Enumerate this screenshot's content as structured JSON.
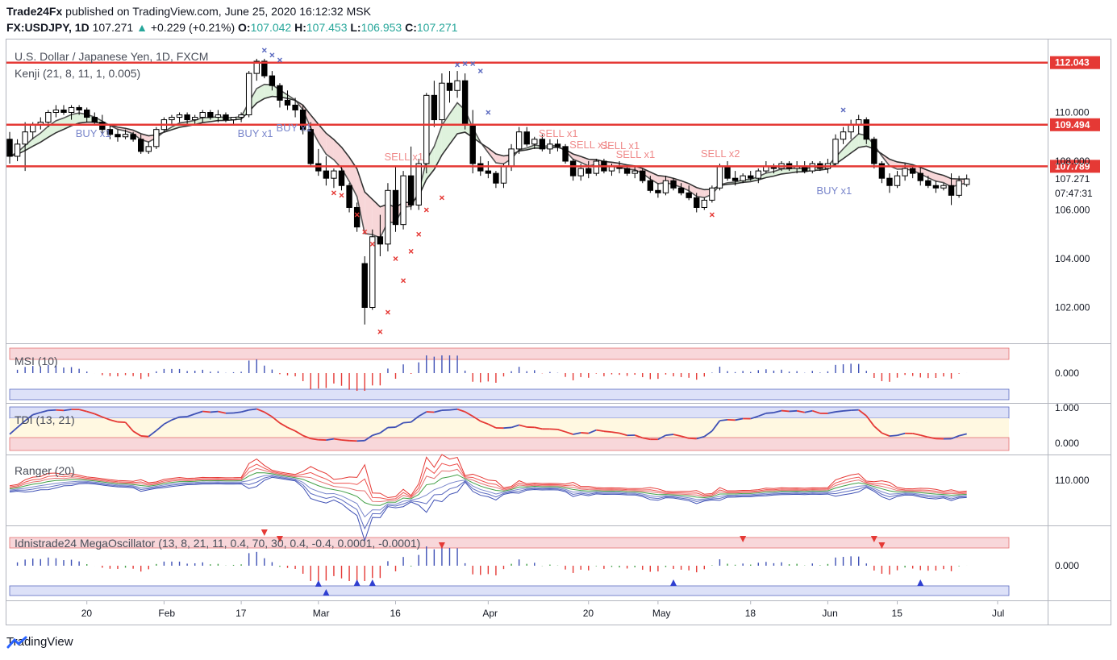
{
  "header": {
    "publisher": "Trade24Fx",
    "published_text": "published on TradingView.com, June 25, 2020 16:12:32 MSK",
    "symbol": "FX:USDJPY, 1D",
    "last": "107.271",
    "change_arrow": "▲",
    "change": "+0.229 (+0.21%)",
    "o_label": "O:",
    "o_value": "107.042",
    "h_label": "H:",
    "h_value": "107.453",
    "l_label": "L:",
    "l_value": "106.953",
    "c_label": "C:",
    "c_value": "107.271"
  },
  "main_pane": {
    "title": "U.S. Dollar / Japanese Yen, 1D, FXCM",
    "indicator": "Kenji (21, 8, 11, 1, 0.005)",
    "levels": [
      {
        "value": 112.043,
        "label": "112.043"
      },
      {
        "value": 109.494,
        "label": "109.494"
      },
      {
        "value": 107.789,
        "label": "107.789"
      }
    ],
    "price_ticks": [
      {
        "value": 110,
        "label": "110.000"
      },
      {
        "value": 108,
        "label": "108.000"
      },
      {
        "value": 106,
        "label": "106.000"
      },
      {
        "value": 104,
        "label": "104.000"
      },
      {
        "value": 102,
        "label": "102.000"
      }
    ],
    "last_price_label": "107.271",
    "countdown": "07:47:31",
    "signals": [
      {
        "text": "BUY x1",
        "type": "buy",
        "bar": 10
      },
      {
        "text": "BUY x1",
        "type": "buy",
        "bar": 31
      },
      {
        "text": "BUY x1",
        "type": "buy",
        "bar": 36
      },
      {
        "text": "SELL x1",
        "type": "sell",
        "bar": 50
      },
      {
        "text": "SELL x1",
        "type": "sell",
        "bar": 70
      },
      {
        "text": "SELL x1",
        "type": "sell",
        "bar": 74
      },
      {
        "text": "SELL x1",
        "type": "sell",
        "bar": 78
      },
      {
        "text": "SELL x1",
        "type": "sell",
        "bar": 80
      },
      {
        "text": "SELL x2",
        "type": "sell",
        "bar": 91
      },
      {
        "text": "BUY x1",
        "type": "buy",
        "bar": 106
      }
    ]
  },
  "msi_pane": {
    "title": "MSI (10)",
    "tick_label": "0.000"
  },
  "tdi_pane": {
    "title": "TDI (13, 21)",
    "tick_labels": [
      "1.000",
      "0.000"
    ]
  },
  "ranger_pane": {
    "title": "Ranger (20)",
    "tick_label": "110.000"
  },
  "mega_pane": {
    "title": "Idnistrade24 MegaOscillator (13, 8, 21, 11, 0.4, 70, 30, 0.4, -0.4, 0.0001, -0.0001)",
    "tick_label": "0.000"
  },
  "time_axis": [
    {
      "label": "20",
      "bar": 10
    },
    {
      "label": "Feb",
      "bar": 20
    },
    {
      "label": "17",
      "bar": 30
    },
    {
      "label": "Mar",
      "bar": 40
    },
    {
      "label": "16",
      "bar": 50
    },
    {
      "label": "Apr",
      "bar": 62
    },
    {
      "label": "20",
      "bar": 75
    },
    {
      "label": "May",
      "bar": 84
    },
    {
      "label": "18",
      "bar": 96
    },
    {
      "label": "Jun",
      "bar": 106
    },
    {
      "label": "15",
      "bar": 115
    },
    {
      "label": "Jul",
      "bar": 128
    }
  ],
  "chart_data": {
    "type": "candlestick",
    "symbol": "FX:USDJPY",
    "timeframe": "1D",
    "ylim": [
      100.8,
      112.6
    ],
    "ohlc": [
      [
        108.9,
        109.2,
        107.9,
        108.2
      ],
      [
        108.2,
        108.9,
        108.0,
        108.7
      ],
      [
        108.7,
        109.6,
        107.6,
        109.2
      ],
      [
        109.2,
        109.6,
        108.9,
        109.5
      ],
      [
        109.5,
        109.8,
        109.3,
        109.6
      ],
      [
        109.6,
        110.1,
        109.4,
        110.0
      ],
      [
        110.0,
        110.3,
        109.8,
        110.1
      ],
      [
        110.1,
        110.3,
        109.9,
        110.0
      ],
      [
        110.0,
        110.3,
        109.7,
        110.2
      ],
      [
        110.2,
        110.3,
        109.9,
        110.1
      ],
      [
        110.1,
        110.2,
        109.6,
        109.8
      ],
      [
        109.8,
        110.0,
        109.5,
        109.6
      ],
      [
        109.6,
        109.9,
        109.1,
        109.3
      ],
      [
        109.3,
        109.5,
        108.9,
        109.1
      ],
      [
        109.1,
        109.3,
        108.8,
        109.0
      ],
      [
        109.0,
        109.3,
        108.9,
        109.1
      ],
      [
        109.1,
        109.2,
        108.8,
        108.9
      ],
      [
        108.9,
        109.1,
        108.3,
        108.4
      ],
      [
        108.4,
        108.8,
        108.3,
        108.6
      ],
      [
        108.6,
        109.4,
        108.5,
        109.3
      ],
      [
        109.3,
        109.8,
        109.2,
        109.7
      ],
      [
        109.7,
        109.9,
        109.5,
        109.8
      ],
      [
        109.8,
        110.0,
        109.6,
        109.9
      ],
      [
        109.9,
        110.0,
        109.5,
        109.7
      ],
      [
        109.7,
        109.9,
        109.5,
        109.8
      ],
      [
        109.8,
        110.1,
        109.6,
        110.0
      ],
      [
        110.0,
        110.1,
        109.7,
        109.8
      ],
      [
        109.8,
        110.1,
        109.6,
        109.9
      ],
      [
        109.9,
        110.0,
        109.6,
        109.7
      ],
      [
        109.7,
        109.8,
        109.5,
        109.8
      ],
      [
        109.8,
        110.0,
        109.6,
        109.9
      ],
      [
        109.9,
        111.7,
        109.8,
        111.6
      ],
      [
        111.6,
        112.2,
        111.3,
        112.1
      ],
      [
        112.1,
        112.2,
        111.4,
        111.5
      ],
      [
        111.5,
        111.7,
        110.9,
        111.1
      ],
      [
        111.1,
        111.2,
        110.2,
        110.5
      ],
      [
        110.5,
        110.9,
        110.1,
        110.3
      ],
      [
        110.3,
        110.6,
        109.8,
        110.1
      ],
      [
        110.1,
        110.3,
        109.1,
        109.3
      ],
      [
        109.3,
        109.6,
        107.8,
        107.9
      ],
      [
        107.9,
        108.5,
        107.4,
        107.6
      ],
      [
        107.6,
        108.2,
        107.0,
        107.3
      ],
      [
        107.3,
        107.7,
        106.9,
        107.6
      ],
      [
        107.6,
        107.8,
        106.8,
        107.0
      ],
      [
        107.0,
        107.1,
        105.9,
        106.1
      ],
      [
        106.1,
        106.3,
        105.1,
        105.3
      ],
      [
        103.8,
        104.1,
        101.3,
        102.0
      ],
      [
        102.0,
        105.2,
        101.9,
        104.9
      ],
      [
        104.9,
        105.8,
        104.1,
        104.6
      ],
      [
        104.6,
        107.1,
        104.3,
        106.8
      ],
      [
        106.8,
        107.8,
        105.1,
        105.4
      ],
      [
        105.4,
        107.6,
        105.2,
        107.4
      ],
      [
        107.4,
        108.6,
        106.0,
        106.2
      ],
      [
        106.2,
        108.1,
        106.0,
        107.9
      ],
      [
        107.9,
        110.8,
        107.5,
        110.7
      ],
      [
        110.7,
        111.3,
        109.4,
        109.7
      ],
      [
        109.7,
        111.6,
        109.5,
        111.2
      ],
      [
        111.2,
        111.7,
        110.4,
        110.9
      ],
      [
        110.9,
        111.7,
        110.6,
        111.3
      ],
      [
        111.3,
        111.6,
        109.3,
        109.5
      ],
      [
        109.5,
        110.1,
        107.5,
        107.9
      ],
      [
        107.9,
        108.2,
        107.4,
        107.6
      ],
      [
        107.6,
        108.0,
        107.3,
        107.5
      ],
      [
        107.5,
        107.6,
        106.9,
        107.1
      ],
      [
        107.1,
        107.9,
        106.9,
        107.8
      ],
      [
        107.8,
        108.7,
        107.6,
        108.5
      ],
      [
        108.5,
        109.4,
        108.3,
        109.2
      ],
      [
        109.2,
        109.4,
        108.6,
        108.7
      ],
      [
        108.7,
        109.0,
        108.5,
        108.9
      ],
      [
        108.9,
        109.1,
        108.4,
        108.5
      ],
      [
        108.5,
        108.9,
        108.3,
        108.7
      ],
      [
        108.7,
        108.9,
        108.4,
        108.6
      ],
      [
        108.6,
        108.7,
        107.9,
        108.0
      ],
      [
        108.0,
        108.1,
        107.2,
        107.4
      ],
      [
        107.4,
        107.9,
        107.2,
        107.7
      ],
      [
        107.7,
        108.0,
        107.3,
        107.5
      ],
      [
        107.5,
        108.1,
        107.4,
        108.0
      ],
      [
        108.0,
        108.1,
        107.5,
        107.6
      ],
      [
        107.6,
        107.9,
        107.4,
        107.8
      ],
      [
        107.8,
        108.0,
        107.5,
        107.7
      ],
      [
        107.7,
        107.8,
        107.4,
        107.5
      ],
      [
        107.5,
        107.8,
        107.3,
        107.6
      ],
      [
        107.6,
        107.7,
        107.1,
        107.2
      ],
      [
        107.2,
        107.4,
        106.7,
        106.8
      ],
      [
        106.8,
        107.1,
        106.5,
        106.7
      ],
      [
        106.7,
        107.4,
        106.6,
        107.2
      ],
      [
        107.2,
        107.3,
        106.8,
        106.9
      ],
      [
        106.9,
        107.1,
        106.6,
        106.7
      ],
      [
        106.7,
        107.0,
        106.4,
        106.5
      ],
      [
        106.5,
        106.7,
        105.9,
        106.1
      ],
      [
        106.1,
        106.5,
        106.0,
        106.4
      ],
      [
        106.4,
        107.0,
        106.3,
        106.9
      ],
      [
        106.9,
        107.9,
        106.8,
        107.8
      ],
      [
        107.8,
        108.0,
        107.2,
        107.3
      ],
      [
        107.3,
        107.6,
        107.0,
        107.2
      ],
      [
        107.2,
        107.5,
        107.1,
        107.4
      ],
      [
        107.4,
        107.6,
        107.2,
        107.3
      ],
      [
        107.3,
        107.7,
        107.1,
        107.6
      ],
      [
        107.6,
        108.0,
        107.5,
        107.8
      ],
      [
        107.8,
        107.9,
        107.5,
        107.7
      ],
      [
        107.7,
        108.0,
        107.6,
        107.9
      ],
      [
        107.9,
        108.0,
        107.6,
        107.7
      ],
      [
        107.7,
        108.0,
        107.5,
        107.8
      ],
      [
        107.8,
        108.0,
        107.5,
        107.6
      ],
      [
        107.6,
        108.0,
        107.5,
        107.9
      ],
      [
        107.9,
        108.0,
        107.6,
        107.7
      ],
      [
        107.7,
        108.1,
        107.5,
        107.9
      ],
      [
        107.9,
        109.1,
        107.8,
        108.9
      ],
      [
        108.9,
        109.4,
        108.7,
        109.2
      ],
      [
        109.2,
        109.7,
        108.9,
        109.5
      ],
      [
        109.5,
        109.9,
        109.1,
        109.7
      ],
      [
        109.7,
        109.8,
        108.7,
        108.9
      ],
      [
        108.9,
        109.0,
        107.7,
        107.9
      ],
      [
        107.9,
        108.0,
        107.1,
        107.3
      ],
      [
        107.3,
        107.5,
        106.7,
        107.0
      ],
      [
        107.0,
        107.6,
        106.9,
        107.4
      ],
      [
        107.4,
        107.9,
        107.2,
        107.7
      ],
      [
        107.7,
        107.8,
        107.3,
        107.5
      ],
      [
        107.5,
        107.8,
        107.0,
        107.2
      ],
      [
        107.2,
        107.4,
        106.9,
        107.0
      ],
      [
        107.0,
        107.2,
        106.7,
        106.9
      ],
      [
        106.9,
        107.1,
        106.8,
        107.0
      ],
      [
        107.0,
        107.5,
        106.2,
        106.6
      ],
      [
        106.6,
        107.4,
        106.5,
        107.2
      ],
      [
        107.042,
        107.453,
        106.953,
        107.271
      ]
    ]
  }
}
